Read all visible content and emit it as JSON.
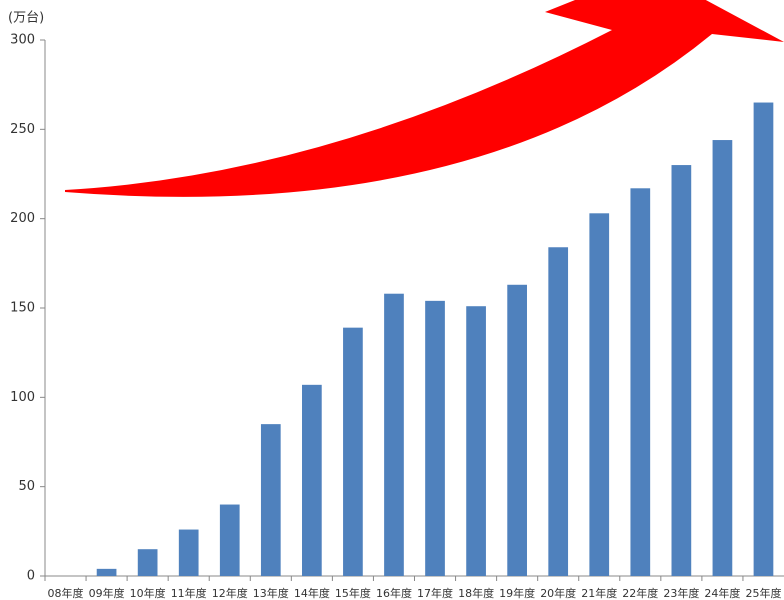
{
  "chart_data": {
    "type": "bar",
    "y_label": "(万台)",
    "categories": [
      "08年度",
      "09年度",
      "10年度",
      "11年度",
      "12年度",
      "13年度",
      "14年度",
      "15年度",
      "16年度",
      "17年度",
      "18年度",
      "19年度",
      "20年度",
      "21年度",
      "22年度",
      "23年度",
      "24年度",
      "25年度"
    ],
    "values": [
      0,
      4,
      15,
      26,
      40,
      85,
      107,
      139,
      158,
      154,
      151,
      163,
      184,
      203,
      217,
      230,
      244,
      265
    ],
    "color": "#4f81bd",
    "ylim": [
      0,
      300
    ],
    "yticks": [
      0,
      50,
      100,
      150,
      200,
      250,
      300
    ]
  }
}
